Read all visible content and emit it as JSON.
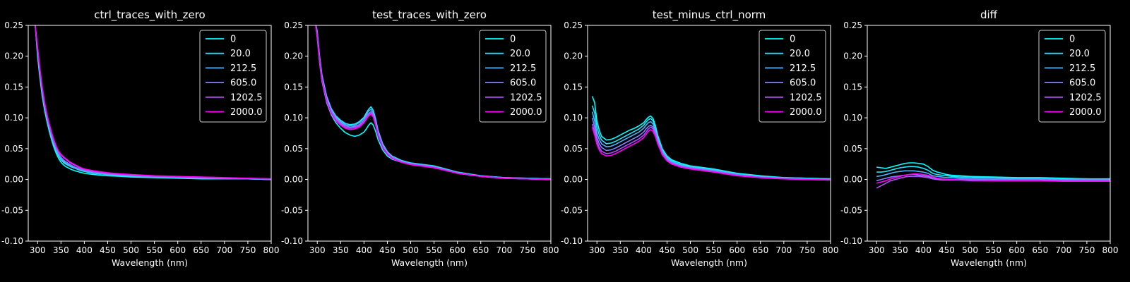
{
  "figure": {
    "background": "#000000",
    "foreground": "#ffffff"
  },
  "legend": {
    "labels": [
      "0",
      "20.0",
      "212.5",
      "605.0",
      "1202.5",
      "2000.0"
    ],
    "colors": [
      "#00ffff",
      "#17e8ff",
      "#4bb4ff",
      "#7e81ff",
      "#b24dff",
      "#ff00ff"
    ],
    "placement": "upper-right"
  },
  "chart_data": [
    {
      "type": "line",
      "title": "ctrl_traces_with_zero",
      "xlabel": "Wavelength (nm)",
      "ylabel": "",
      "xlim": [
        280,
        800
      ],
      "ylim": [
        -0.1,
        0.25
      ],
      "xticks": [
        "300",
        "350",
        "400",
        "450",
        "500",
        "550",
        "600",
        "650",
        "700",
        "750",
        "800"
      ],
      "yticks": [
        "-0.10",
        "-0.05",
        "0.00",
        "0.05",
        "0.10",
        "0.15",
        "0.20",
        "0.25"
      ],
      "grid": false,
      "x": [
        290,
        295,
        300,
        305,
        310,
        315,
        320,
        325,
        330,
        335,
        340,
        345,
        350,
        355,
        360,
        370,
        380,
        390,
        400,
        420,
        450,
        480,
        500,
        550,
        600,
        650,
        700,
        750,
        800
      ],
      "series": [
        {
          "name": "0",
          "values": [
            0.26,
            0.25,
            0.2,
            0.165,
            0.135,
            0.112,
            0.094,
            0.078,
            0.064,
            0.052,
            0.042,
            0.034,
            0.028,
            0.024,
            0.021,
            0.017,
            0.014,
            0.012,
            0.01,
            0.008,
            0.006,
            0.005,
            0.004,
            0.003,
            0.002,
            0.001,
            0.001,
            0.001,
            0.0
          ]
        },
        {
          "name": "20.0",
          "values": [
            0.26,
            0.25,
            0.205,
            0.17,
            0.14,
            0.116,
            0.098,
            0.082,
            0.068,
            0.056,
            0.046,
            0.038,
            0.032,
            0.028,
            0.025,
            0.021,
            0.018,
            0.015,
            0.013,
            0.01,
            0.008,
            0.006,
            0.005,
            0.004,
            0.003,
            0.002,
            0.001,
            0.001,
            0.0
          ]
        },
        {
          "name": "212.5",
          "values": [
            0.26,
            0.25,
            0.21,
            0.173,
            0.143,
            0.118,
            0.1,
            0.084,
            0.07,
            0.058,
            0.048,
            0.04,
            0.034,
            0.03,
            0.027,
            0.022,
            0.019,
            0.016,
            0.014,
            0.011,
            0.008,
            0.007,
            0.006,
            0.004,
            0.003,
            0.002,
            0.001,
            0.001,
            0.0
          ]
        },
        {
          "name": "605.0",
          "values": [
            0.26,
            0.25,
            0.21,
            0.175,
            0.145,
            0.12,
            0.102,
            0.086,
            0.072,
            0.06,
            0.05,
            0.042,
            0.036,
            0.032,
            0.029,
            0.024,
            0.02,
            0.017,
            0.015,
            0.012,
            0.009,
            0.008,
            0.007,
            0.005,
            0.004,
            0.003,
            0.002,
            0.001,
            0.001
          ]
        },
        {
          "name": "1202.5",
          "values": [
            0.26,
            0.25,
            0.212,
            0.177,
            0.147,
            0.122,
            0.104,
            0.088,
            0.074,
            0.062,
            0.052,
            0.045,
            0.04,
            0.036,
            0.033,
            0.027,
            0.023,
            0.019,
            0.016,
            0.013,
            0.01,
            0.008,
            0.007,
            0.005,
            0.004,
            0.003,
            0.002,
            0.002,
            0.001
          ]
        },
        {
          "name": "2000.0",
          "values": [
            0.26,
            0.25,
            0.215,
            0.18,
            0.15,
            0.125,
            0.106,
            0.09,
            0.076,
            0.064,
            0.054,
            0.046,
            0.041,
            0.037,
            0.034,
            0.028,
            0.024,
            0.02,
            0.017,
            0.014,
            0.011,
            0.009,
            0.008,
            0.006,
            0.005,
            0.004,
            0.003,
            0.002,
            0.001
          ]
        }
      ]
    },
    {
      "type": "line",
      "title": "test_traces_with_zero",
      "xlabel": "Wavelength (nm)",
      "ylabel": "",
      "xlim": [
        280,
        800
      ],
      "ylim": [
        -0.1,
        0.25
      ],
      "xticks": [
        "300",
        "350",
        "400",
        "450",
        "500",
        "550",
        "600",
        "650",
        "700",
        "750",
        "800"
      ],
      "yticks": [
        "-0.10",
        "-0.05",
        "0.00",
        "0.05",
        "0.10",
        "0.15",
        "0.20",
        "0.25"
      ],
      "grid": false,
      "x": [
        290,
        295,
        300,
        305,
        310,
        320,
        330,
        340,
        350,
        360,
        370,
        380,
        390,
        400,
        405,
        410,
        415,
        420,
        425,
        430,
        440,
        450,
        460,
        480,
        500,
        550,
        600,
        650,
        700,
        750,
        800
      ],
      "series": [
        {
          "name": "0",
          "values": [
            0.26,
            0.26,
            0.23,
            0.19,
            0.16,
            0.125,
            0.105,
            0.092,
            0.083,
            0.076,
            0.072,
            0.07,
            0.072,
            0.077,
            0.082,
            0.088,
            0.092,
            0.088,
            0.078,
            0.065,
            0.048,
            0.038,
            0.033,
            0.028,
            0.025,
            0.02,
            0.01,
            0.005,
            0.002,
            0.001,
            0.0
          ]
        },
        {
          "name": "20.0",
          "values": [
            0.26,
            0.26,
            0.24,
            0.2,
            0.17,
            0.135,
            0.115,
            0.103,
            0.096,
            0.091,
            0.089,
            0.09,
            0.094,
            0.101,
            0.108,
            0.114,
            0.118,
            0.112,
            0.098,
            0.08,
            0.058,
            0.045,
            0.038,
            0.031,
            0.027,
            0.022,
            0.012,
            0.006,
            0.003,
            0.002,
            0.001
          ]
        },
        {
          "name": "212.5",
          "values": [
            0.26,
            0.26,
            0.238,
            0.198,
            0.168,
            0.133,
            0.113,
            0.101,
            0.094,
            0.089,
            0.087,
            0.088,
            0.092,
            0.099,
            0.105,
            0.111,
            0.114,
            0.108,
            0.095,
            0.078,
            0.056,
            0.044,
            0.037,
            0.03,
            0.026,
            0.021,
            0.011,
            0.006,
            0.003,
            0.002,
            0.001
          ]
        },
        {
          "name": "605.0",
          "values": [
            0.26,
            0.26,
            0.236,
            0.196,
            0.166,
            0.131,
            0.111,
            0.099,
            0.092,
            0.087,
            0.085,
            0.086,
            0.089,
            0.096,
            0.102,
            0.107,
            0.11,
            0.105,
            0.092,
            0.076,
            0.055,
            0.043,
            0.036,
            0.029,
            0.025,
            0.02,
            0.011,
            0.005,
            0.002,
            0.001,
            0.0
          ]
        },
        {
          "name": "1202.5",
          "values": [
            0.26,
            0.26,
            0.234,
            0.194,
            0.164,
            0.129,
            0.109,
            0.097,
            0.09,
            0.085,
            0.083,
            0.084,
            0.087,
            0.094,
            0.1,
            0.105,
            0.108,
            0.103,
            0.09,
            0.074,
            0.053,
            0.042,
            0.035,
            0.028,
            0.025,
            0.02,
            0.01,
            0.005,
            0.002,
            0.001,
            0.0
          ]
        },
        {
          "name": "2000.0",
          "values": [
            0.26,
            0.26,
            0.232,
            0.192,
            0.162,
            0.127,
            0.107,
            0.095,
            0.088,
            0.083,
            0.081,
            0.082,
            0.085,
            0.092,
            0.098,
            0.103,
            0.106,
            0.101,
            0.088,
            0.072,
            0.052,
            0.041,
            0.034,
            0.028,
            0.024,
            0.019,
            0.01,
            0.005,
            0.002,
            0.001,
            0.0
          ]
        }
      ]
    },
    {
      "type": "line",
      "title": "test_minus_ctrl_norm",
      "xlabel": "Wavelength (nm)",
      "ylabel": "",
      "xlim": [
        280,
        800
      ],
      "ylim": [
        -0.1,
        0.25
      ],
      "xticks": [
        "300",
        "350",
        "400",
        "450",
        "500",
        "550",
        "600",
        "650",
        "700",
        "750",
        "800"
      ],
      "yticks": [
        "-0.10",
        "-0.05",
        "0.00",
        "0.05",
        "0.10",
        "0.15",
        "0.20",
        "0.25"
      ],
      "grid": false,
      "x": [
        290,
        295,
        300,
        305,
        310,
        320,
        330,
        340,
        350,
        360,
        370,
        380,
        390,
        400,
        405,
        410,
        415,
        420,
        425,
        430,
        440,
        450,
        460,
        480,
        500,
        550,
        600,
        650,
        700,
        750,
        800
      ],
      "series": [
        {
          "name": "0",
          "values": [
            0.135,
            0.125,
            0.095,
            0.08,
            0.07,
            0.064,
            0.065,
            0.068,
            0.072,
            0.076,
            0.08,
            0.083,
            0.087,
            0.092,
            0.097,
            0.101,
            0.103,
            0.099,
            0.088,
            0.072,
            0.05,
            0.038,
            0.032,
            0.026,
            0.022,
            0.017,
            0.01,
            0.006,
            0.003,
            0.002,
            0.001
          ]
        },
        {
          "name": "20.0",
          "values": [
            0.12,
            0.108,
            0.085,
            0.072,
            0.064,
            0.058,
            0.059,
            0.062,
            0.066,
            0.07,
            0.074,
            0.078,
            0.082,
            0.088,
            0.093,
            0.097,
            0.099,
            0.095,
            0.084,
            0.069,
            0.048,
            0.036,
            0.03,
            0.024,
            0.021,
            0.016,
            0.009,
            0.005,
            0.003,
            0.002,
            0.001
          ]
        },
        {
          "name": "212.5",
          "values": [
            0.11,
            0.095,
            0.075,
            0.065,
            0.058,
            0.053,
            0.054,
            0.057,
            0.061,
            0.065,
            0.069,
            0.073,
            0.077,
            0.083,
            0.088,
            0.092,
            0.094,
            0.09,
            0.08,
            0.066,
            0.046,
            0.035,
            0.029,
            0.023,
            0.02,
            0.015,
            0.008,
            0.004,
            0.002,
            0.001,
            0.0
          ]
        },
        {
          "name": "605.0",
          "values": [
            0.1,
            0.085,
            0.068,
            0.058,
            0.052,
            0.047,
            0.048,
            0.051,
            0.055,
            0.059,
            0.063,
            0.067,
            0.071,
            0.077,
            0.082,
            0.086,
            0.088,
            0.085,
            0.076,
            0.063,
            0.044,
            0.033,
            0.027,
            0.022,
            0.019,
            0.014,
            0.008,
            0.004,
            0.002,
            0.001,
            0.0
          ]
        },
        {
          "name": "1202.5",
          "values": [
            0.09,
            0.078,
            0.062,
            0.052,
            0.046,
            0.042,
            0.043,
            0.046,
            0.05,
            0.054,
            0.058,
            0.062,
            0.066,
            0.072,
            0.077,
            0.082,
            0.085,
            0.082,
            0.073,
            0.06,
            0.042,
            0.031,
            0.026,
            0.021,
            0.018,
            0.013,
            0.007,
            0.003,
            0.001,
            0.0,
            -0.001
          ]
        },
        {
          "name": "2000.0",
          "values": [
            0.085,
            0.072,
            0.057,
            0.048,
            0.042,
            0.038,
            0.039,
            0.042,
            0.046,
            0.05,
            0.054,
            0.058,
            0.062,
            0.068,
            0.073,
            0.078,
            0.081,
            0.078,
            0.07,
            0.058,
            0.04,
            0.03,
            0.025,
            0.02,
            0.017,
            0.012,
            0.006,
            0.003,
            0.001,
            0.0,
            -0.001
          ]
        }
      ]
    },
    {
      "type": "line",
      "title": "diff",
      "xlabel": "Wavelength (nm)",
      "ylabel": "",
      "xlim": [
        280,
        800
      ],
      "ylim": [
        -0.1,
        0.25
      ],
      "xticks": [
        "300",
        "350",
        "400",
        "450",
        "500",
        "550",
        "600",
        "650",
        "700",
        "750",
        "800"
      ],
      "yticks": [
        "-0.10",
        "-0.05",
        "0.00",
        "0.05",
        "0.10",
        "0.15",
        "0.20",
        "0.25"
      ],
      "grid": false,
      "x": [
        300,
        310,
        320,
        330,
        340,
        350,
        360,
        370,
        380,
        390,
        400,
        410,
        420,
        430,
        440,
        450,
        460,
        480,
        500,
        550,
        600,
        650,
        700,
        750,
        800
      ],
      "series": [
        {
          "name": "0",
          "values": [
            0.02,
            0.019,
            0.018,
            0.02,
            0.022,
            0.024,
            0.026,
            0.027,
            0.027,
            0.026,
            0.025,
            0.021,
            0.015,
            0.012,
            0.01,
            0.008,
            0.007,
            0.006,
            0.005,
            0.004,
            0.003,
            0.003,
            0.002,
            0.001,
            0.001
          ]
        },
        {
          "name": "20.0",
          "values": [
            0.012,
            0.012,
            0.013,
            0.015,
            0.017,
            0.019,
            0.02,
            0.021,
            0.021,
            0.02,
            0.018,
            0.015,
            0.01,
            0.008,
            0.007,
            0.006,
            0.005,
            0.004,
            0.004,
            0.003,
            0.002,
            0.002,
            0.001,
            0.001,
            0.0
          ]
        },
        {
          "name": "212.5",
          "values": [
            0.005,
            0.006,
            0.008,
            0.01,
            0.012,
            0.013,
            0.014,
            0.014,
            0.014,
            0.013,
            0.012,
            0.01,
            0.006,
            0.005,
            0.004,
            0.003,
            0.003,
            0.002,
            0.002,
            0.002,
            0.001,
            0.001,
            0.0,
            0.0,
            0.0
          ]
        },
        {
          "name": "605.0",
          "values": [
            -0.002,
            0.0,
            0.002,
            0.004,
            0.005,
            0.006,
            0.007,
            0.008,
            0.008,
            0.007,
            0.006,
            0.005,
            0.002,
            0.001,
            0.001,
            0.0,
            0.0,
            0.0,
            0.0,
            0.0,
            0.0,
            0.0,
            -0.001,
            -0.001,
            -0.001
          ]
        },
        {
          "name": "1202.5",
          "values": [
            -0.014,
            -0.01,
            -0.006,
            -0.002,
            0.0,
            0.002,
            0.004,
            0.005,
            0.005,
            0.005,
            0.004,
            0.003,
            0.001,
            0.0,
            -0.001,
            -0.001,
            -0.001,
            -0.001,
            -0.002,
            -0.002,
            -0.002,
            -0.002,
            -0.002,
            -0.002,
            -0.002
          ]
        },
        {
          "name": "2000.0",
          "values": [
            -0.006,
            -0.004,
            -0.002,
            0.001,
            0.003,
            0.005,
            0.007,
            0.008,
            0.009,
            0.009,
            0.008,
            0.007,
            0.004,
            0.002,
            0.001,
            0.0,
            0.0,
            -0.001,
            -0.001,
            -0.002,
            -0.002,
            -0.002,
            -0.003,
            -0.003,
            -0.003
          ]
        }
      ]
    }
  ]
}
